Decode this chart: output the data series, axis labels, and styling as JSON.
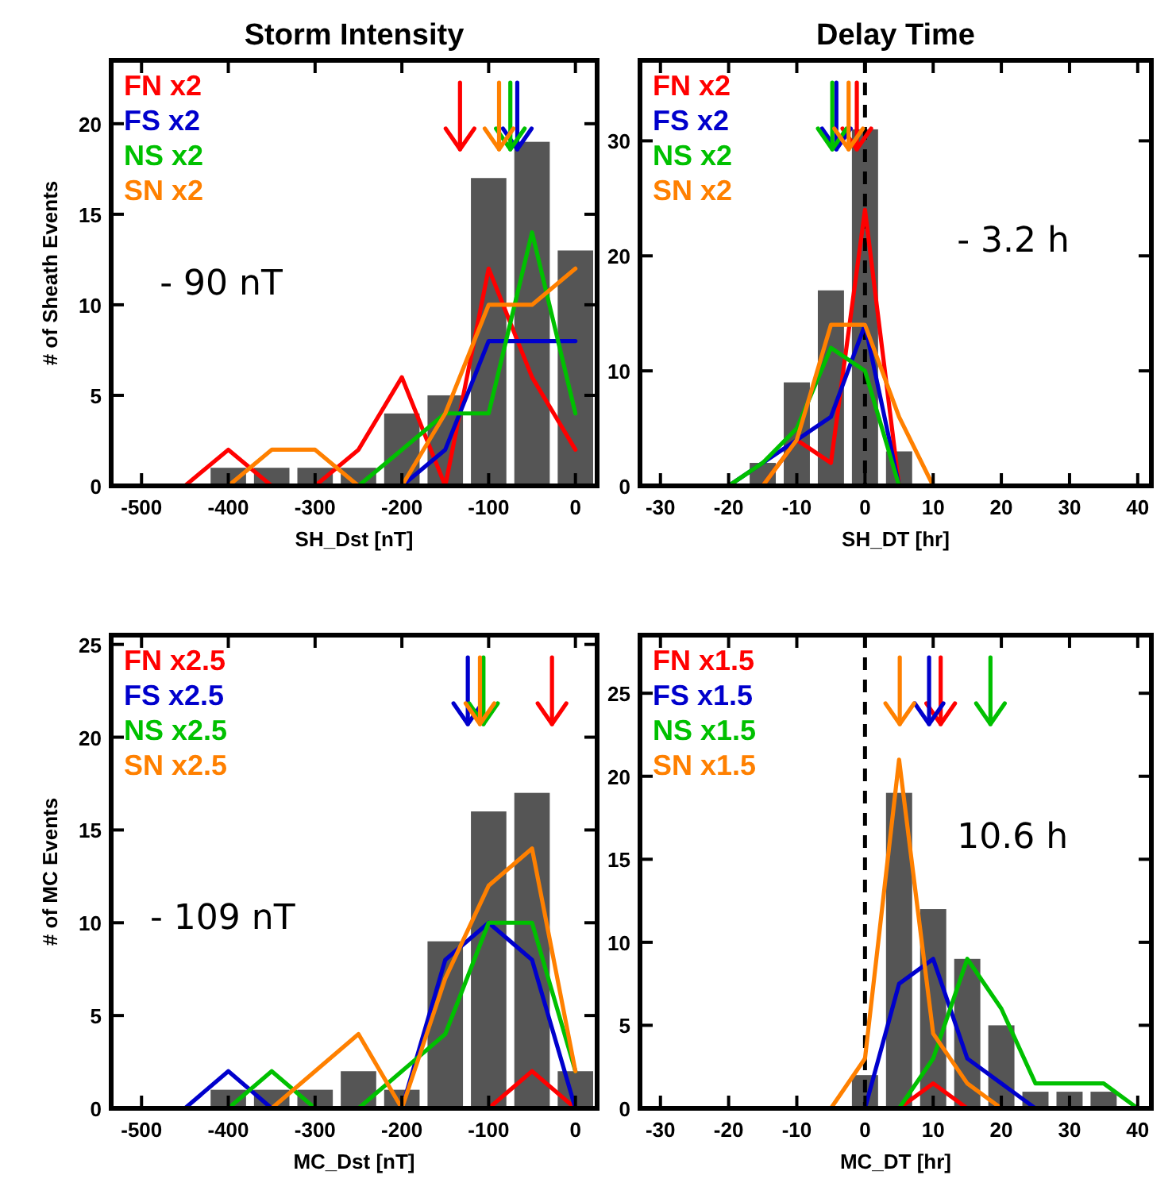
{
  "chart_data": [
    {
      "type": "histogram",
      "title": "Storm Intensity",
      "xlabel": "SH_Dst [nT]",
      "ylabel": "# of Sheath Events",
      "annotations": [
        "- 90 nT"
      ],
      "legend": "top left",
      "bins": [
        -425,
        -375,
        -325,
        -275,
        -225,
        -175,
        -125,
        -75,
        -25,
        25
      ],
      "values": [
        1,
        1,
        1,
        1,
        4,
        5,
        17,
        19,
        13
      ],
      "color": "#555555",
      "xlim": [
        -535,
        25
      ],
      "ylim": [
        0,
        23.5
      ],
      "xticks": [
        -500,
        -400,
        -300,
        -200,
        -100,
        0
      ],
      "yticks": [
        0,
        5,
        10,
        15,
        20
      ],
      "series": [
        {
          "name": "FN x2",
          "color": "#ff0000",
          "type": "line",
          "x": [
            -450,
            -400,
            -350,
            -300,
            -250,
            -200,
            -150,
            -100,
            -50,
            0
          ],
          "values": [
            0,
            2,
            0,
            0,
            2,
            6,
            0,
            12,
            6,
            2
          ]
        },
        {
          "name": "FS x2",
          "color": "#0000cc",
          "type": "line",
          "x": [
            -200,
            -150,
            -100,
            -50,
            0
          ],
          "values": [
            0,
            2,
            8,
            8,
            8
          ]
        },
        {
          "name": "NS x2",
          "color": "#00c000",
          "type": "line",
          "x": [
            -250,
            -200,
            -150,
            -100,
            -50,
            0
          ],
          "values": [
            0,
            2,
            4,
            4,
            14,
            4
          ]
        },
        {
          "name": "SN x2",
          "color": "#ff8000",
          "type": "line",
          "x": [
            -400,
            -350,
            -300,
            -250,
            -200,
            -150,
            -100,
            -50,
            0
          ],
          "values": [
            0,
            2,
            2,
            0,
            0,
            4,
            10,
            10,
            12
          ]
        }
      ],
      "ref_lines": [
        {
          "axis": "x",
          "value": -133,
          "color": "#ff0000",
          "line_style": "solid"
        },
        {
          "axis": "x",
          "value": -67,
          "color": "#0000cc",
          "line_style": "solid"
        },
        {
          "axis": "x",
          "value": -75,
          "color": "#00c000",
          "line_style": "solid"
        },
        {
          "axis": "x",
          "value": -88,
          "color": "#ff8000",
          "line_style": "solid"
        }
      ]
    },
    {
      "type": "histogram",
      "title": "Delay Time",
      "xlabel": "SH_DT [hr]",
      "annotations": [
        "- 3.2 h"
      ],
      "legend": "top left",
      "bins": [
        -17.5,
        -12.5,
        -7.5,
        -2.5,
        2.5,
        7.5
      ],
      "values": [
        2,
        9,
        17,
        31,
        3
      ],
      "color": "#555555",
      "xlim": [
        -33,
        42
      ],
      "ylim": [
        0,
        37
      ],
      "xticks": [
        -30,
        -20,
        -10,
        0,
        10,
        20,
        30,
        40
      ],
      "yticks": [
        0,
        10,
        20,
        30
      ],
      "series": [
        {
          "name": "FN x2",
          "color": "#ff0000",
          "type": "line",
          "x": [
            -15,
            -10,
            -5,
            0,
            5
          ],
          "values": [
            0,
            4,
            2,
            24,
            0
          ]
        },
        {
          "name": "FS x2",
          "color": "#0000cc",
          "type": "line",
          "x": [
            -20,
            -10,
            -5,
            0,
            5
          ],
          "values": [
            0,
            4,
            6,
            14,
            0
          ]
        },
        {
          "name": "NS x2",
          "color": "#00c000",
          "type": "line",
          "x": [
            -20,
            -15,
            -10,
            -5,
            0,
            5
          ],
          "values": [
            0,
            2,
            5,
            12,
            10,
            0
          ]
        },
        {
          "name": "SN x2",
          "color": "#ff8000",
          "type": "line",
          "x": [
            -15,
            -10,
            -5,
            0,
            5,
            10
          ],
          "values": [
            0,
            4,
            14,
            14,
            6,
            0
          ]
        }
      ],
      "ref_lines": [
        {
          "axis": "x",
          "value": 0,
          "color": "#000000",
          "line_style": "dashed"
        },
        {
          "axis": "x",
          "value": -1.2,
          "color": "#ff0000",
          "line_style": "solid"
        },
        {
          "axis": "x",
          "value": -4.2,
          "color": "#0000cc",
          "line_style": "solid"
        },
        {
          "axis": "x",
          "value": -4.8,
          "color": "#00c000",
          "line_style": "solid"
        },
        {
          "axis": "x",
          "value": -2.4,
          "color": "#ff8000",
          "line_style": "solid"
        }
      ]
    },
    {
      "type": "histogram",
      "xlabel": "MC_Dst [nT]",
      "ylabel": "# of MC Events",
      "annotations": [
        "- 109 nT"
      ],
      "legend": "top left",
      "bins": [
        -425,
        -375,
        -325,
        -275,
        -225,
        -175,
        -125,
        -75,
        -25,
        25
      ],
      "values": [
        1,
        1,
        1,
        2,
        1,
        9,
        16,
        17,
        2
      ],
      "color": "#555555",
      "xlim": [
        -535,
        25
      ],
      "ylim": [
        0,
        25.5
      ],
      "xticks": [
        -500,
        -400,
        -300,
        -200,
        -100,
        0
      ],
      "yticks": [
        0,
        5,
        10,
        15,
        20,
        25
      ],
      "series": [
        {
          "name": "FN x2.5",
          "color": "#ff0000",
          "type": "line",
          "x": [
            -100,
            -50,
            0
          ],
          "values": [
            0,
            2,
            0
          ]
        },
        {
          "name": "FS x2.5",
          "color": "#0000cc",
          "type": "line",
          "x": [
            -450,
            -400,
            -350,
            -300,
            -250,
            -200,
            -150,
            -100,
            -50,
            0
          ],
          "values": [
            0,
            2,
            0,
            0,
            0,
            0,
            8,
            10,
            8,
            0
          ]
        },
        {
          "name": "NS x2.5",
          "color": "#00c000",
          "type": "line",
          "x": [
            -400,
            -350,
            -300,
            -250,
            -200,
            -150,
            -100,
            -50,
            0
          ],
          "values": [
            0,
            2,
            0,
            0,
            2,
            4,
            10,
            10,
            2
          ]
        },
        {
          "name": "SN x2.5",
          "color": "#ff8000",
          "type": "line",
          "x": [
            -350,
            -300,
            -250,
            -200,
            -150,
            -100,
            -50,
            0
          ],
          "values": [
            0,
            2,
            4,
            0,
            7,
            12,
            14,
            2
          ]
        }
      ],
      "ref_lines": [
        {
          "axis": "x",
          "value": -27,
          "color": "#ff0000",
          "line_style": "solid"
        },
        {
          "axis": "x",
          "value": -124,
          "color": "#0000cc",
          "line_style": "solid"
        },
        {
          "axis": "x",
          "value": -106,
          "color": "#00c000",
          "line_style": "solid"
        },
        {
          "axis": "x",
          "value": -110,
          "color": "#ff8000",
          "line_style": "solid"
        }
      ]
    },
    {
      "type": "histogram",
      "xlabel": "MC_DT [hr]",
      "annotations": [
        "10.6 h"
      ],
      "legend": "top left",
      "bins": [
        -2.5,
        2.5,
        7.5,
        12.5,
        17.5,
        22.5,
        27.5,
        32.5,
        37.5
      ],
      "values": [
        2,
        19,
        12,
        9,
        5,
        1,
        1,
        1
      ],
      "color": "#555555",
      "xlim": [
        -33,
        42
      ],
      "ylim": [
        0,
        28.5
      ],
      "xticks": [
        -30,
        -20,
        -10,
        0,
        10,
        20,
        30,
        40
      ],
      "yticks": [
        0,
        5,
        10,
        15,
        20,
        25
      ],
      "series": [
        {
          "name": "FN x1.5",
          "color": "#ff0000",
          "type": "line",
          "x": [
            5,
            10,
            15
          ],
          "values": [
            0,
            1.5,
            0
          ]
        },
        {
          "name": "FS x1.5",
          "color": "#0000cc",
          "type": "line",
          "x": [
            0,
            5,
            10,
            15,
            20,
            25
          ],
          "values": [
            0,
            7.5,
            9,
            3,
            1.5,
            0
          ]
        },
        {
          "name": "NS x1.5",
          "color": "#00c000",
          "type": "line",
          "x": [
            5,
            10,
            15,
            20,
            25,
            30,
            35,
            40
          ],
          "values": [
            0,
            3,
            9,
            6,
            1.5,
            1.5,
            1.5,
            0
          ]
        },
        {
          "name": "SN x1.5",
          "color": "#ff8000",
          "type": "line",
          "x": [
            -5,
            0,
            5,
            10,
            15,
            20
          ],
          "values": [
            0,
            3,
            21,
            4.5,
            1.5,
            0
          ]
        }
      ],
      "ref_lines": [
        {
          "axis": "x",
          "value": 0,
          "color": "#000000",
          "line_style": "dashed"
        },
        {
          "axis": "x",
          "value": 11.1,
          "color": "#ff0000",
          "line_style": "solid"
        },
        {
          "axis": "x",
          "value": 9.4,
          "color": "#0000cc",
          "line_style": "solid"
        },
        {
          "axis": "x",
          "value": 18.4,
          "color": "#00c000",
          "line_style": "solid"
        },
        {
          "axis": "x",
          "value": 5.1,
          "color": "#ff8000",
          "line_style": "solid"
        }
      ]
    }
  ]
}
